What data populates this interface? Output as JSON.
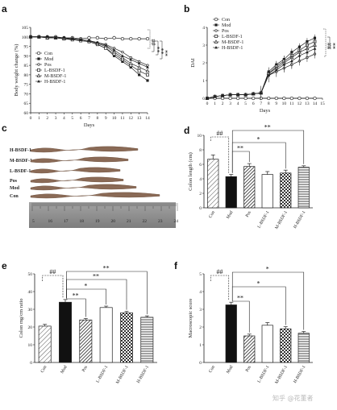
{
  "panels": {
    "a": "a",
    "b": "b",
    "c": "c",
    "d": "d",
    "e": "e",
    "f": "f"
  },
  "colors": {
    "axis": "#222222",
    "con": "#ffffff",
    "mod": "#111111",
    "pos_hatch": "#333333",
    "tissue": "#8a6a56",
    "ruler": "#8d8d8d"
  },
  "photo": {
    "labels": [
      "H-BSDF-1",
      "M-BSDF-1",
      "L-BSDF-1",
      "Pos",
      "Mod",
      "Con"
    ],
    "ruler_numbers": [
      "5",
      "16",
      "17",
      "18",
      "19",
      "20",
      "21",
      "22",
      "23",
      "24"
    ]
  },
  "watermark": "知乎 @花董者",
  "chart_data": [
    {
      "panel": "a",
      "type": "line",
      "title": "",
      "xlabel": "Days",
      "ylabel": "Body weight change (%)",
      "xlim": [
        0,
        14
      ],
      "ylim": [
        60,
        105
      ],
      "yticks": [
        60,
        65,
        70,
        75,
        80,
        85,
        90,
        95,
        100,
        105
      ],
      "x": [
        0,
        1,
        2,
        3,
        4,
        5,
        6,
        7,
        8,
        9,
        10,
        11,
        12,
        13,
        14
      ],
      "legend_position": "lower-left",
      "series": [
        {
          "name": "Con",
          "marker": "circle-open",
          "values": [
            100,
            100,
            100,
            100,
            99.5,
            99.5,
            99,
            99.5,
            99.5,
            99,
            99.5,
            99,
            99,
            99,
            99
          ]
        },
        {
          "name": "Mod",
          "marker": "square-filled",
          "values": [
            100,
            100,
            99.5,
            99.5,
            99,
            98.5,
            98,
            97.5,
            96,
            94,
            90,
            87,
            84,
            80,
            77
          ]
        },
        {
          "name": "Pos",
          "marker": "circle-small",
          "values": [
            100,
            100,
            100,
            99.5,
            99.5,
            99,
            98.5,
            98,
            97,
            96,
            94,
            92,
            89,
            87,
            85
          ]
        },
        {
          "name": "L-BSDF-1",
          "marker": "square-open",
          "values": [
            100,
            100,
            99.5,
            99.5,
            99,
            98.5,
            98,
            97.5,
            96,
            94,
            91,
            88,
            85,
            82,
            80
          ]
        },
        {
          "name": "M-BSDF-1",
          "marker": "triangle-open",
          "values": [
            100,
            100,
            99.5,
            99.5,
            99,
            99,
            98.5,
            98,
            96.5,
            95,
            92,
            89,
            86,
            84,
            82
          ]
        },
        {
          "name": "H-BSDF-1",
          "marker": "triangle-filled",
          "values": [
            100,
            100,
            100,
            99.5,
            99.5,
            99,
            98.5,
            98,
            97,
            95.5,
            93,
            90,
            88,
            86,
            84
          ]
        }
      ],
      "annotations": [
        "##",
        "**",
        "**",
        "**"
      ]
    },
    {
      "panel": "b",
      "type": "line",
      "title": "",
      "xlabel": "Days",
      "ylabel": "DAI",
      "xlim": [
        0,
        15
      ],
      "ylim": [
        0,
        4
      ],
      "yticks": [
        0,
        1,
        2,
        3,
        4
      ],
      "xticks": [
        0,
        1,
        2,
        3,
        4,
        5,
        6,
        7,
        8,
        9,
        10,
        11,
        12,
        13,
        14,
        15
      ],
      "x": [
        0,
        1,
        2,
        3,
        4,
        5,
        6,
        7,
        8,
        9,
        10,
        11,
        12,
        13,
        14
      ],
      "legend_position": "top-left",
      "series": [
        {
          "name": "Con",
          "marker": "circle-open",
          "values": [
            0,
            0,
            0,
            0,
            0,
            0,
            0,
            0,
            0,
            0,
            0,
            0,
            0,
            0,
            0
          ]
        },
        {
          "name": "Mod",
          "marker": "square-filled",
          "values": [
            0,
            0.1,
            0.15,
            0.2,
            0.2,
            0.2,
            0.25,
            0.3,
            1.5,
            1.9,
            2.2,
            2.6,
            2.9,
            3.2,
            3.4
          ]
        },
        {
          "name": "Pos",
          "marker": "circle-small",
          "values": [
            0,
            0.1,
            0.15,
            0.2,
            0.2,
            0.2,
            0.25,
            0.3,
            1.3,
            1.5,
            1.7,
            1.9,
            2.1,
            2.3,
            2.5
          ]
        },
        {
          "name": "L-BSDF-1",
          "marker": "square-open",
          "values": [
            0,
            0.1,
            0.15,
            0.2,
            0.2,
            0.2,
            0.25,
            0.3,
            1.4,
            1.8,
            2.1,
            2.4,
            2.7,
            3.0,
            3.2
          ]
        },
        {
          "name": "M-BSDF-1",
          "marker": "triangle-open",
          "values": [
            0,
            0.1,
            0.15,
            0.2,
            0.2,
            0.2,
            0.25,
            0.3,
            1.4,
            1.7,
            2.0,
            2.3,
            2.6,
            2.8,
            3.0
          ]
        },
        {
          "name": "H-BSDF-1",
          "marker": "triangle-filled",
          "values": [
            0,
            0.1,
            0.15,
            0.2,
            0.2,
            0.2,
            0.25,
            0.3,
            1.3,
            1.6,
            1.9,
            2.1,
            2.4,
            2.6,
            2.8
          ]
        }
      ],
      "annotations": [
        "##",
        "**"
      ]
    },
    {
      "panel": "d",
      "type": "bar",
      "title": "",
      "xlabel": "",
      "ylabel": "Colon length (cm)",
      "ylim": [
        0,
        10
      ],
      "yticks": [
        0,
        2,
        4,
        6,
        8,
        10
      ],
      "categories": [
        "Con",
        "Mod",
        "Pos",
        "L-BSDF-1",
        "M-BSDF-1",
        "H-BSDF-1"
      ],
      "values": [
        6.7,
        4.3,
        5.7,
        4.6,
        4.8,
        5.6
      ],
      "errors": [
        0.6,
        0.3,
        0.4,
        0.4,
        0.4,
        0.2
      ],
      "fills": [
        "diag-light",
        "solid-black",
        "diag-dense",
        "white",
        "checker",
        "hlines"
      ],
      "annotations": [
        "##",
        "**",
        "*",
        "**"
      ]
    },
    {
      "panel": "e",
      "type": "bar",
      "title": "",
      "xlabel": "",
      "ylabel": "Colon mg/cm ratio",
      "ylim": [
        0,
        50
      ],
      "yticks": [
        0,
        10,
        20,
        30,
        40,
        50
      ],
      "categories": [
        "Con",
        "Mod",
        "Pos",
        "L-BSDF-1",
        "M-BSDF-1",
        "H-BSDF-1"
      ],
      "values": [
        20.5,
        34.0,
        24.0,
        31.0,
        28.0,
        25.5
      ],
      "errors": [
        1.0,
        1.5,
        0.8,
        0.8,
        0.8,
        0.8
      ],
      "fills": [
        "diag-light",
        "solid-black",
        "diag-dense",
        "white",
        "checker",
        "hlines"
      ],
      "annotations": [
        "##",
        "**",
        "*",
        "**",
        "**"
      ]
    },
    {
      "panel": "f",
      "type": "bar",
      "title": "",
      "xlabel": "",
      "ylabel": "Macroscopic score",
      "ylim": [
        0,
        5
      ],
      "yticks": [
        0,
        1,
        2,
        3,
        4,
        5
      ],
      "categories": [
        "Con",
        "Mod",
        "Pos",
        "L-BSDF-1",
        "M-BSDF-1",
        "H-BSDF-1"
      ],
      "values": [
        0,
        3.25,
        1.5,
        2.1,
        1.9,
        1.65
      ],
      "errors": [
        0,
        0.15,
        0.1,
        0.15,
        0.12,
        0.1
      ],
      "fills": [
        "diag-light",
        "solid-black",
        "diag-dense",
        "white",
        "checker",
        "hlines"
      ],
      "annotations": [
        "##",
        "**",
        "*",
        "*"
      ]
    }
  ]
}
